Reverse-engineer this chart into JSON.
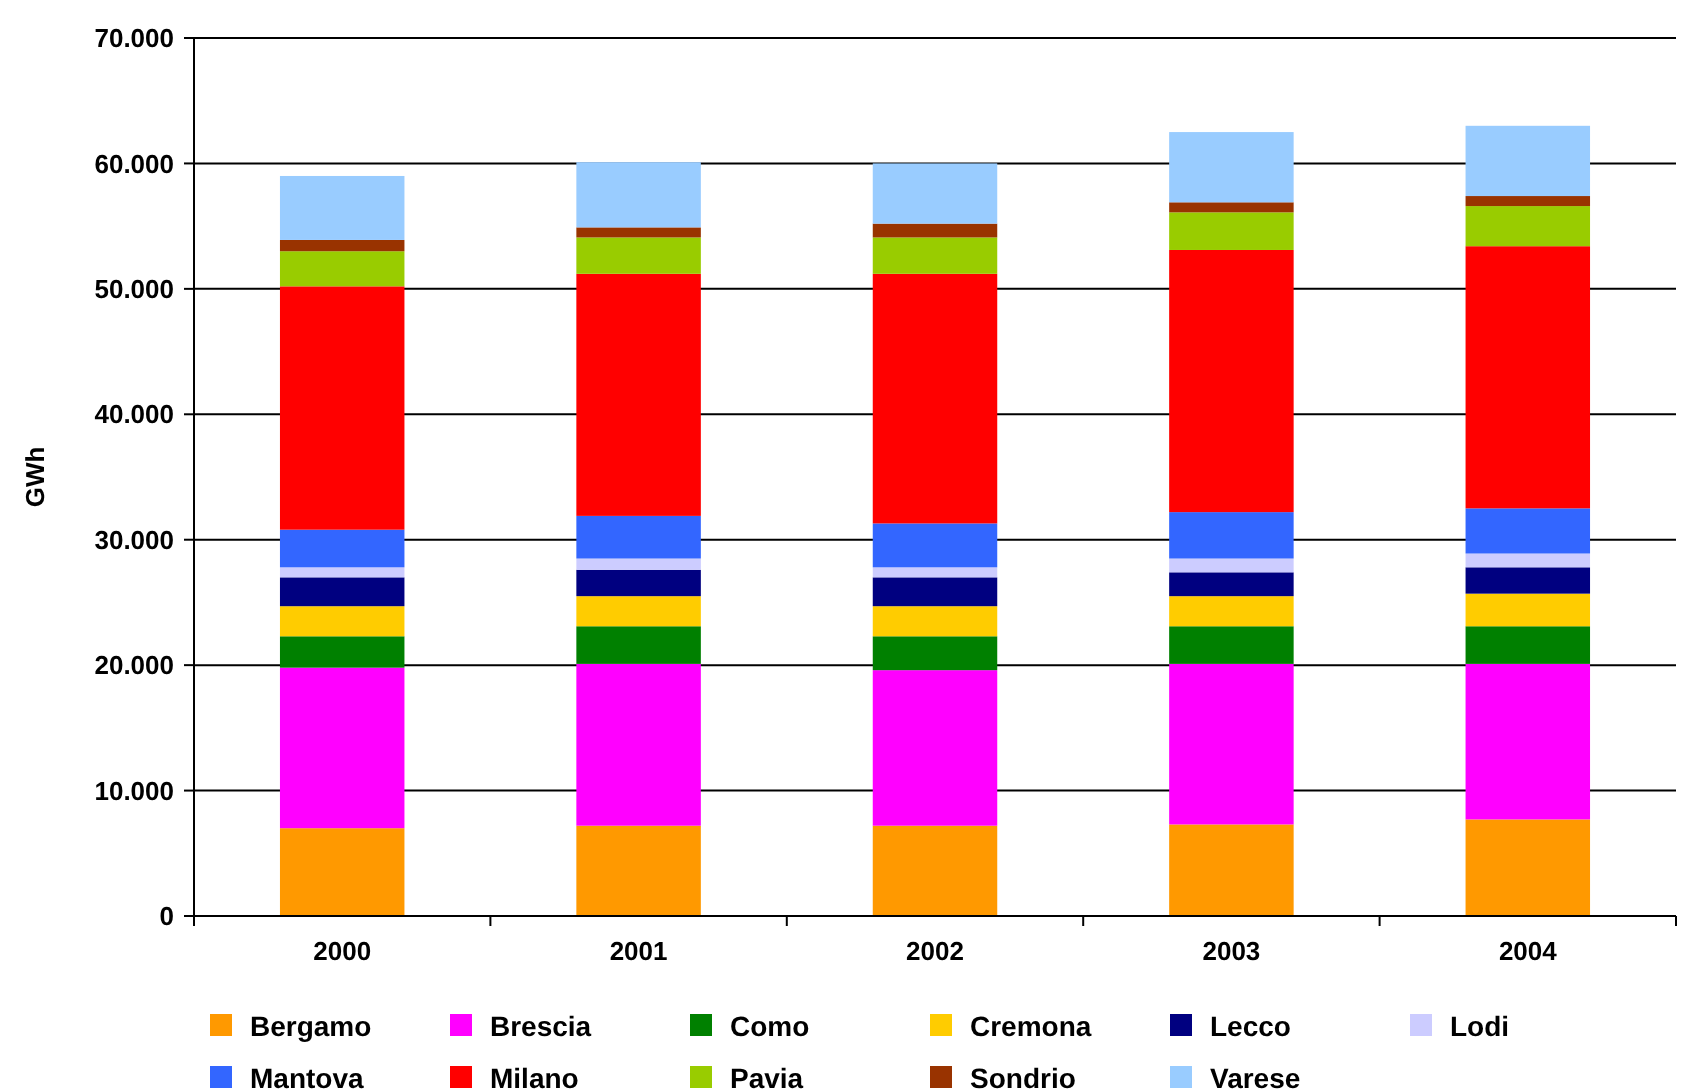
{
  "chart_data": {
    "type": "bar",
    "stacked": true,
    "ylabel": "GWh",
    "categories": [
      "2000",
      "2001",
      "2002",
      "2003",
      "2004"
    ],
    "series": [
      {
        "name": "Bergamo",
        "color": "#ff9900",
        "values": [
          7000,
          7200,
          7200,
          7300,
          7700
        ]
      },
      {
        "name": "Brescia",
        "color": "#ff00ff",
        "values": [
          12800,
          12900,
          12400,
          12800,
          12400
        ]
      },
      {
        "name": "Como",
        "color": "#008000",
        "values": [
          2500,
          3000,
          2700,
          3000,
          3000
        ]
      },
      {
        "name": "Cremona",
        "color": "#ffcc00",
        "values": [
          2400,
          2400,
          2400,
          2400,
          2600
        ]
      },
      {
        "name": "Lecco",
        "color": "#000080",
        "values": [
          2300,
          2100,
          2300,
          1900,
          2100
        ]
      },
      {
        "name": "Lodi",
        "color": "#ccccff",
        "values": [
          800,
          900,
          800,
          1100,
          1100
        ]
      },
      {
        "name": "Mantova",
        "color": "#3366ff",
        "values": [
          3000,
          3400,
          3500,
          3700,
          3600
        ]
      },
      {
        "name": "Milano",
        "color": "#ff0000",
        "values": [
          19400,
          19300,
          19900,
          20900,
          20900
        ]
      },
      {
        "name": "Pavia",
        "color": "#99cc00",
        "values": [
          2800,
          2900,
          2900,
          3000,
          3200
        ]
      },
      {
        "name": "Sondrio",
        "color": "#993300",
        "values": [
          900,
          800,
          1100,
          800,
          800
        ]
      },
      {
        "name": "Varese",
        "color": "#99ccff",
        "values": [
          5100,
          5200,
          4800,
          5600,
          5600
        ]
      }
    ],
    "ylim": [
      0,
      70000
    ],
    "yticks": [
      {
        "value": 0,
        "label": "0"
      },
      {
        "value": 10000,
        "label": "10.000"
      },
      {
        "value": 20000,
        "label": "20.000"
      },
      {
        "value": 30000,
        "label": "30.000"
      },
      {
        "value": 40000,
        "label": "40.000"
      },
      {
        "value": 50000,
        "label": "50.000"
      },
      {
        "value": 60000,
        "label": "60.000"
      },
      {
        "value": 70000,
        "label": "70.000"
      }
    ],
    "grid": "y",
    "legend": "bottom"
  }
}
